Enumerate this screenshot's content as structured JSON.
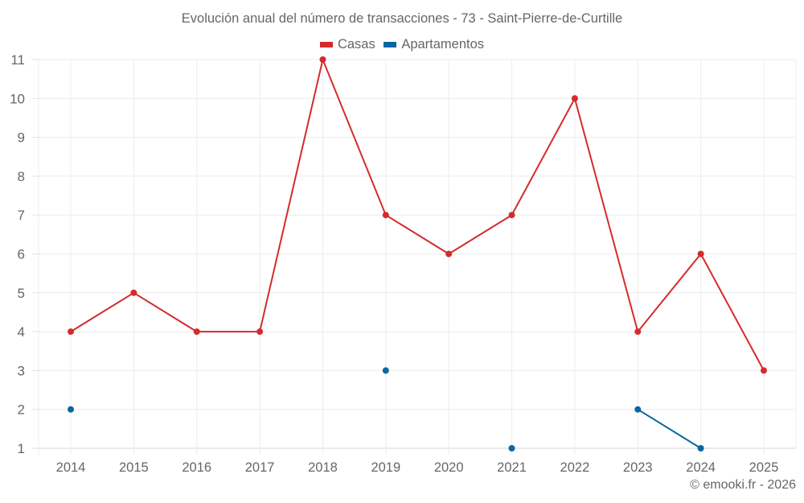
{
  "title": "Evolución anual del número de transacciones - 73 - Saint-Pierre-de-Curtille",
  "credit": "© emooki.fr - 2026",
  "legend": [
    {
      "label": "Casas",
      "color": "#d52b2b"
    },
    {
      "label": "Apartamentos",
      "color": "#0a67a0"
    }
  ],
  "chart_data": {
    "type": "line",
    "title": "Evolución anual del número de transacciones - 73 - Saint-Pierre-de-Curtille",
    "xlabel": "",
    "ylabel": "",
    "categories": [
      "2014",
      "2015",
      "2016",
      "2017",
      "2018",
      "2019",
      "2020",
      "2021",
      "2022",
      "2023",
      "2024",
      "2025"
    ],
    "series": [
      {
        "name": "Casas",
        "color": "#d52b2b",
        "values": [
          4,
          5,
          4,
          4,
          11,
          7,
          6,
          7,
          10,
          4,
          6,
          3
        ]
      },
      {
        "name": "Apartamentos",
        "color": "#0a67a0",
        "values": [
          2,
          null,
          null,
          null,
          null,
          3,
          null,
          1,
          null,
          2,
          1,
          null
        ]
      }
    ],
    "ylim": [
      1,
      11
    ],
    "yticks": [
      1,
      2,
      3,
      4,
      5,
      6,
      7,
      8,
      9,
      10,
      11
    ],
    "grid": true,
    "legend_position": "top"
  }
}
